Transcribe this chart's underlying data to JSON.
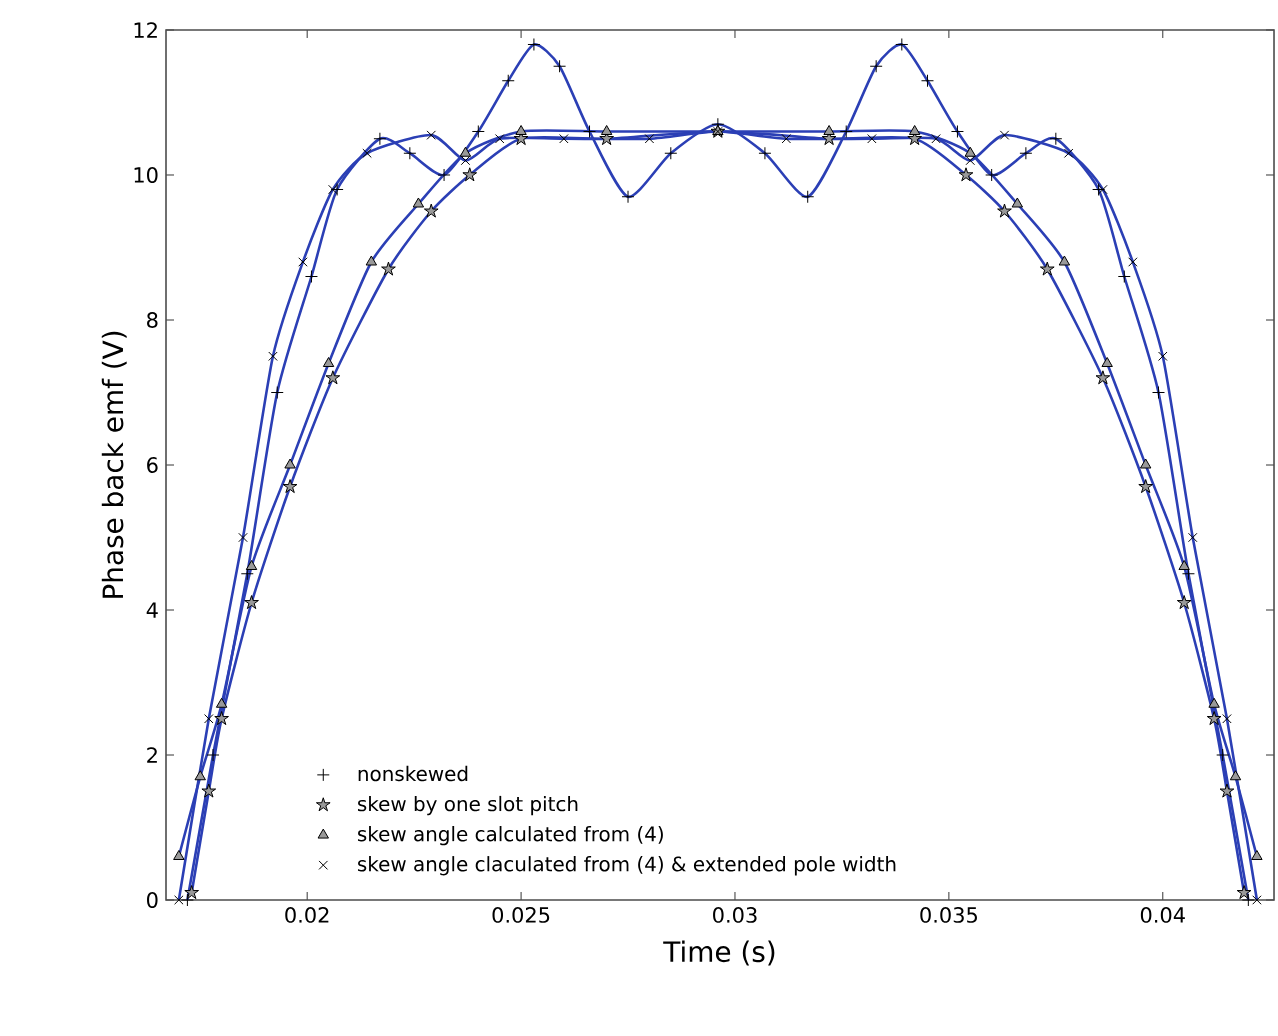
{
  "chart_data": {
    "type": "line",
    "xlabel": "Time (s)",
    "ylabel": "Phase back emf (V)",
    "xlim": [
      0.0167,
      0.0426
    ],
    "ylim": [
      0,
      12
    ],
    "xticks": [
      0.02,
      0.025,
      0.03,
      0.035,
      0.04
    ],
    "yticks": [
      0,
      2,
      4,
      6,
      8,
      10,
      12
    ],
    "legend": "bottom",
    "grid": false,
    "series": [
      {
        "name": "nonskewed",
        "color": "#2b3fb5",
        "marker": "plus",
        "x": [
          0.0172,
          0.0178,
          0.0186,
          0.0193,
          0.0201,
          0.0207,
          0.0217,
          0.0224,
          0.0232,
          0.024,
          0.0247,
          0.0253,
          0.0259,
          0.0266,
          0.0275,
          0.0285,
          0.0296,
          0.0307,
          0.0317,
          0.0326,
          0.0333,
          0.0339,
          0.0345,
          0.0352,
          0.036,
          0.0368,
          0.0375,
          0.0385,
          0.0391,
          0.0399,
          0.0406,
          0.0414,
          0.042
        ],
        "values": [
          0,
          2,
          4.5,
          7,
          8.6,
          9.8,
          10.5,
          10.3,
          10.0,
          10.6,
          11.3,
          11.8,
          11.5,
          10.6,
          9.7,
          10.3,
          10.7,
          10.3,
          9.7,
          10.6,
          11.5,
          11.8,
          11.3,
          10.6,
          10.0,
          10.3,
          10.5,
          9.8,
          8.6,
          7,
          4.5,
          2,
          0
        ]
      },
      {
        "name": "skew by one slot pitch",
        "color": "#2b3fb5",
        "marker": "star",
        "x": [
          0.0173,
          0.0177,
          0.018,
          0.0187,
          0.0196,
          0.0206,
          0.0219,
          0.0229,
          0.0238,
          0.025,
          0.027,
          0.0296,
          0.0322,
          0.0342,
          0.0354,
          0.0363,
          0.0373,
          0.0386,
          0.0396,
          0.0405,
          0.0412,
          0.0415,
          0.0419
        ],
        "values": [
          0.1,
          1.5,
          2.5,
          4.1,
          5.7,
          7.2,
          8.7,
          9.5,
          10.0,
          10.5,
          10.5,
          10.6,
          10.5,
          10.5,
          10.0,
          9.5,
          8.7,
          7.2,
          5.7,
          4.1,
          2.5,
          1.5,
          0.1
        ]
      },
      {
        "name": "skew angle calculated from (4)",
        "color": "#2b3fb5",
        "marker": "triangle",
        "x": [
          0.017,
          0.0175,
          0.018,
          0.0187,
          0.0196,
          0.0205,
          0.0215,
          0.0226,
          0.0237,
          0.025,
          0.027,
          0.0296,
          0.0322,
          0.0342,
          0.0355,
          0.0366,
          0.0377,
          0.0387,
          0.0396,
          0.0405,
          0.0412,
          0.0417,
          0.0422
        ],
        "values": [
          0.6,
          1.7,
          2.7,
          4.6,
          6.0,
          7.4,
          8.8,
          9.6,
          10.3,
          10.6,
          10.6,
          10.6,
          10.6,
          10.6,
          10.3,
          9.6,
          8.8,
          7.4,
          6.0,
          4.6,
          2.7,
          1.7,
          0.6
        ]
      },
      {
        "name": "skew angle claculated from (4) & extended pole width",
        "color": "#2b3fb5",
        "marker": "cross",
        "x": [
          0.017,
          0.0177,
          0.0185,
          0.0192,
          0.0199,
          0.0206,
          0.0214,
          0.0229,
          0.0237,
          0.0245,
          0.026,
          0.028,
          0.0296,
          0.0312,
          0.0332,
          0.0347,
          0.0355,
          0.0363,
          0.0378,
          0.0386,
          0.0393,
          0.04,
          0.0407,
          0.0415,
          0.0422
        ],
        "values": [
          0,
          2.5,
          5,
          7.5,
          8.8,
          9.8,
          10.3,
          10.55,
          10.2,
          10.5,
          10.5,
          10.5,
          10.6,
          10.5,
          10.5,
          10.5,
          10.2,
          10.55,
          10.3,
          9.8,
          8.8,
          7.5,
          5,
          2.5,
          0
        ]
      }
    ]
  }
}
